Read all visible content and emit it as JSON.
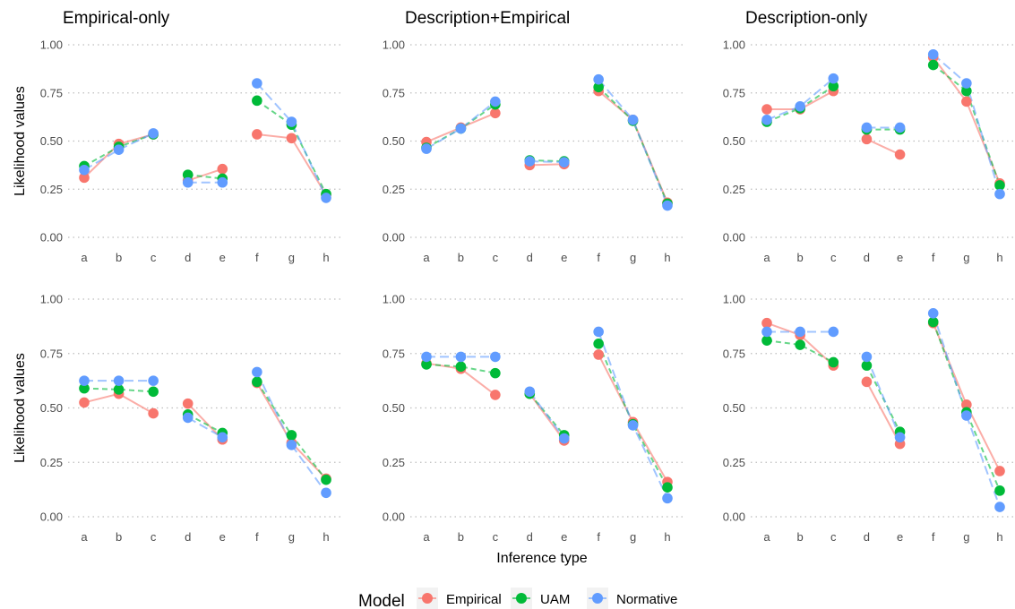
{
  "chart_data": {
    "type": "line",
    "categories": [
      "a",
      "b",
      "c",
      "d",
      "e",
      "f",
      "g",
      "h"
    ],
    "segments": [
      [
        0,
        2
      ],
      [
        3,
        4
      ],
      [
        5,
        7
      ]
    ],
    "yticks": [
      "0.00",
      "0.25",
      "0.50",
      "0.75",
      "1.00"
    ],
    "ylim": [
      0,
      1
    ],
    "ylabel": "Likelihood values",
    "xlabel": "Inference type",
    "grid": "horizontal-dotted",
    "legend": {
      "title": "Model",
      "placement": "bottom",
      "entries": [
        {
          "name": "Empirical",
          "color": "#F8766D"
        },
        {
          "name": "UAM",
          "color": "#00BA38"
        },
        {
          "name": "Normative",
          "color": "#619CFF"
        }
      ]
    },
    "panels": [
      {
        "title": "Empirical-only",
        "series": [
          {
            "name": "Empirical",
            "values": [
              0.31,
              0.485,
              0.535,
              0.295,
              0.355,
              0.535,
              0.515,
              0.22
            ]
          },
          {
            "name": "UAM",
            "values": [
              0.37,
              0.47,
              0.535,
              0.325,
              0.305,
              0.71,
              0.585,
              0.225
            ]
          },
          {
            "name": "Normative",
            "values": [
              0.35,
              0.455,
              0.54,
              0.285,
              0.285,
              0.8,
              0.6,
              0.205
            ]
          }
        ]
      },
      {
        "title": "Description+Empirical",
        "series": [
          {
            "name": "Empirical",
            "values": [
              0.495,
              0.57,
              0.645,
              0.375,
              0.38,
              0.76,
              0.61,
              0.18
            ]
          },
          {
            "name": "UAM",
            "values": [
              0.465,
              0.565,
              0.69,
              0.4,
              0.395,
              0.78,
              0.605,
              0.175
            ]
          },
          {
            "name": "Normative",
            "values": [
              0.46,
              0.565,
              0.705,
              0.395,
              0.39,
              0.82,
              0.61,
              0.165
            ]
          }
        ]
      },
      {
        "title": "Description-only",
        "series": [
          {
            "name": "Empirical",
            "values": [
              0.665,
              0.665,
              0.76,
              0.51,
              0.43,
              0.935,
              0.705,
              0.28
            ]
          },
          {
            "name": "UAM",
            "values": [
              0.6,
              0.67,
              0.785,
              0.56,
              0.56,
              0.895,
              0.76,
              0.27
            ]
          },
          {
            "name": "Normative",
            "values": [
              0.61,
              0.68,
              0.825,
              0.57,
              0.57,
              0.95,
              0.8,
              0.225
            ]
          }
        ]
      },
      {
        "title": "",
        "series": [
          {
            "name": "Empirical",
            "values": [
              0.525,
              0.565,
              0.475,
              0.52,
              0.355,
              0.615,
              0.34,
              0.175
            ]
          },
          {
            "name": "UAM",
            "values": [
              0.59,
              0.585,
              0.575,
              0.47,
              0.385,
              0.62,
              0.375,
              0.17
            ]
          },
          {
            "name": "Normative",
            "values": [
              0.625,
              0.625,
              0.625,
              0.455,
              0.365,
              0.665,
              0.33,
              0.11
            ]
          }
        ]
      },
      {
        "title": "",
        "series": [
          {
            "name": "Empirical",
            "values": [
              0.705,
              0.68,
              0.56,
              0.565,
              0.35,
              0.745,
              0.435,
              0.16
            ]
          },
          {
            "name": "UAM",
            "values": [
              0.7,
              0.69,
              0.66,
              0.565,
              0.375,
              0.795,
              0.425,
              0.135
            ]
          },
          {
            "name": "Normative",
            "values": [
              0.735,
              0.735,
              0.735,
              0.575,
              0.36,
              0.85,
              0.42,
              0.085
            ]
          }
        ]
      },
      {
        "title": "",
        "series": [
          {
            "name": "Empirical",
            "values": [
              0.89,
              0.835,
              0.695,
              0.62,
              0.335,
              0.89,
              0.515,
              0.21
            ]
          },
          {
            "name": "UAM",
            "values": [
              0.81,
              0.79,
              0.71,
              0.695,
              0.39,
              0.895,
              0.48,
              0.12
            ]
          },
          {
            "name": "Normative",
            "values": [
              0.85,
              0.85,
              0.85,
              0.735,
              0.365,
              0.935,
              0.465,
              0.045
            ]
          }
        ]
      }
    ]
  }
}
